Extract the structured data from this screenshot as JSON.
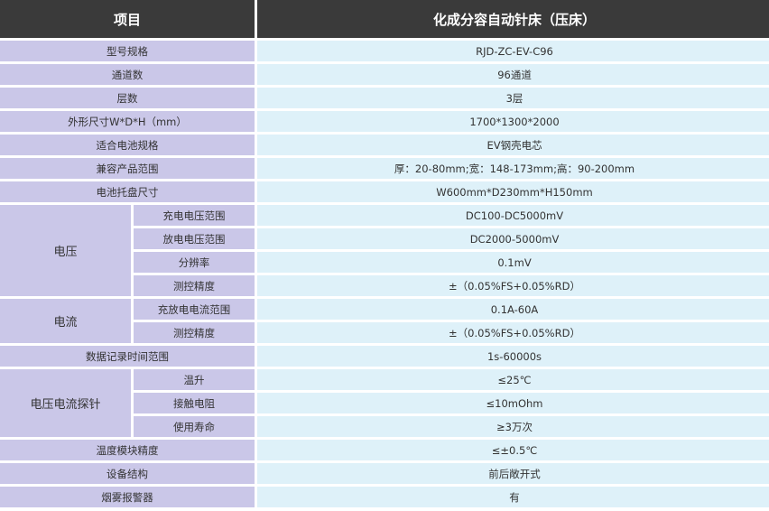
{
  "header": {
    "col1": "项目",
    "col2": "化成分容自动针床（压床）"
  },
  "rows": [
    {
      "label": "型号规格",
      "value": "RJD-ZC-EV-C96"
    },
    {
      "label": "通道数",
      "value": "96通道"
    },
    {
      "label": "层数",
      "value": "3层"
    },
    {
      "label": "外形尺寸W*D*H（mm）",
      "value": "1700*1300*2000"
    },
    {
      "label": "适合电池规格",
      "value": "EV钢壳电芯"
    },
    {
      "label": "兼容产品范围",
      "value": "厚：20-80mm;宽：148-173mm;高：90-200mm"
    },
    {
      "label": "电池托盘尺寸",
      "value": "W600mm*D230mm*H150mm"
    },
    {
      "label": "电压",
      "items": [
        {
          "label": "充电电压范围",
          "value": "DC100-DC5000mV"
        },
        {
          "label": "放电电压范围",
          "value": "DC2000-5000mV"
        },
        {
          "label": "分辨率",
          "value": "0.1mV"
        },
        {
          "label": "测控精度",
          "value": "±（0.05%FS+0.05%RD）"
        }
      ]
    },
    {
      "label": "电流",
      "items": [
        {
          "label": "充放电电流范围",
          "value": "0.1A-60A"
        },
        {
          "label": "测控精度",
          "value": "±（0.05%FS+0.05%RD）"
        }
      ]
    },
    {
      "label": "数据记录时间范围",
      "value": "1s-60000s"
    },
    {
      "label": "电压电流探针",
      "items": [
        {
          "label": "温升",
          "value": "≤25℃"
        },
        {
          "label": "接触电阻",
          "value": "≤10mOhm"
        },
        {
          "label": "使用寿命",
          "value": "≥3万次"
        }
      ]
    },
    {
      "label": "温度模块精度",
      "value": "≤±0.5℃"
    },
    {
      "label": "设备结构",
      "value": "前后敞开式"
    },
    {
      "label": "烟雾报警器",
      "value": "有"
    }
  ]
}
